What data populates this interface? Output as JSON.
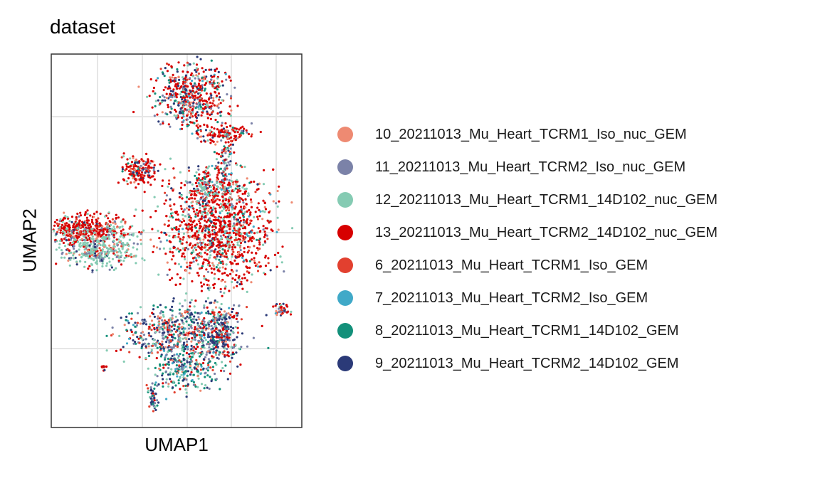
{
  "chart_data": {
    "type": "scatter",
    "title": "dataset",
    "xlabel": "UMAP1",
    "ylabel": "UMAP2",
    "grid": true,
    "legend_position": "right",
    "series": [
      {
        "name": "10_20211013_Mu_Heart_TCRM1_Iso_nuc_GEM",
        "color": "#ee8a72"
      },
      {
        "name": "11_20211013_Mu_Heart_TCRM2_Iso_nuc_GEM",
        "color": "#7b82a8"
      },
      {
        "name": "12_20211013_Mu_Heart_TCRM1_14D102_nuc_GEM",
        "color": "#85cbb3"
      },
      {
        "name": "13_20211013_Mu_Heart_TCRM2_14D102_nuc_GEM",
        "color": "#d70000"
      },
      {
        "name": "6_20211013_Mu_Heart_TCRM1_Iso_GEM",
        "color": "#e2402f"
      },
      {
        "name": "7_20211013_Mu_Heart_TCRM2_Iso_GEM",
        "color": "#40a9c8"
      },
      {
        "name": "8_20211013_Mu_Heart_TCRM1_14D102_GEM",
        "color": "#13907a"
      },
      {
        "name": "9_20211013_Mu_Heart_TCRM2_14D102_GEM",
        "color": "#2b3a78"
      }
    ]
  }
}
